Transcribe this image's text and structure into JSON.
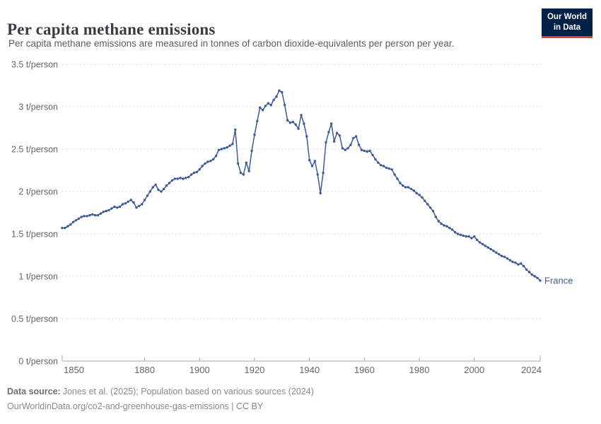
{
  "header": {
    "title": "Per capita methane emissions",
    "subtitle": "Per capita methane emissions are measured in tonnes of carbon dioxide-equivalents per person per year.",
    "logo": {
      "line1": "Our World",
      "line2": "in Data",
      "bg_color": "#002147",
      "accent_color": "#e23d28"
    }
  },
  "chart_data": {
    "type": "line",
    "title": "Per capita methane emissions",
    "unit": "t/person",
    "xlabel": "",
    "ylabel": "",
    "xlim": [
      1850,
      2024
    ],
    "ylim": [
      0,
      3.5
    ],
    "grid": "horizontal-dashed",
    "gridline_color": "#dcdcdc",
    "axis_color": "#a8a8a8",
    "tick_label_color": "#666666",
    "yticks": [
      {
        "v": 0,
        "label": "0 t/person"
      },
      {
        "v": 0.5,
        "label": "0.5 t/person"
      },
      {
        "v": 1,
        "label": "1 t/person"
      },
      {
        "v": 1.5,
        "label": "1.5 t/person"
      },
      {
        "v": 2,
        "label": "2 t/person"
      },
      {
        "v": 2.5,
        "label": "2.5 t/person"
      },
      {
        "v": 3,
        "label": "3 t/person"
      },
      {
        "v": 3.5,
        "label": "3.5 t/person"
      }
    ],
    "xticks": [
      {
        "v": 1850,
        "label": "1850"
      },
      {
        "v": 1880,
        "label": "1880"
      },
      {
        "v": 1900,
        "label": "1900"
      },
      {
        "v": 1920,
        "label": "1920"
      },
      {
        "v": 1940,
        "label": "1940"
      },
      {
        "v": 1960,
        "label": "1960"
      },
      {
        "v": 1980,
        "label": "1980"
      },
      {
        "v": 2000,
        "label": "2000"
      },
      {
        "v": 2024,
        "label": "2024"
      }
    ],
    "x_start": 1850,
    "series": [
      {
        "name": "France",
        "color": "#3d5a96",
        "end_label": "France",
        "values": [
          1.57,
          1.57,
          1.59,
          1.61,
          1.64,
          1.66,
          1.68,
          1.7,
          1.71,
          1.71,
          1.72,
          1.73,
          1.72,
          1.72,
          1.74,
          1.76,
          1.77,
          1.78,
          1.8,
          1.82,
          1.81,
          1.82,
          1.85,
          1.86,
          1.88,
          1.9,
          1.87,
          1.81,
          1.83,
          1.85,
          1.9,
          1.95,
          2.0,
          2.05,
          2.08,
          2.02,
          2.0,
          2.03,
          2.07,
          2.1,
          2.13,
          2.15,
          2.15,
          2.16,
          2.15,
          2.16,
          2.17,
          2.2,
          2.22,
          2.23,
          2.26,
          2.3,
          2.33,
          2.35,
          2.36,
          2.38,
          2.42,
          2.49,
          2.5,
          2.51,
          2.52,
          2.54,
          2.56,
          2.73,
          2.33,
          2.22,
          2.2,
          2.34,
          2.24,
          2.48,
          2.67,
          2.83,
          2.99,
          2.96,
          3.01,
          3.04,
          3.02,
          3.08,
          3.12,
          3.19,
          3.17,
          3.02,
          2.84,
          2.81,
          2.82,
          2.79,
          2.74,
          2.9,
          2.8,
          2.65,
          2.37,
          2.3,
          2.36,
          2.2,
          1.98,
          2.22,
          2.58,
          2.7,
          2.8,
          2.59,
          2.69,
          2.66,
          2.51,
          2.49,
          2.51,
          2.55,
          2.63,
          2.65,
          2.55,
          2.49,
          2.48,
          2.47,
          2.48,
          2.43,
          2.38,
          2.34,
          2.31,
          2.3,
          2.28,
          2.27,
          2.26,
          2.2,
          2.15,
          2.1,
          2.07,
          2.05,
          2.05,
          2.03,
          2.01,
          1.98,
          1.96,
          1.93,
          1.89,
          1.85,
          1.81,
          1.77,
          1.7,
          1.65,
          1.62,
          1.6,
          1.59,
          1.57,
          1.55,
          1.52,
          1.5,
          1.49,
          1.48,
          1.47,
          1.47,
          1.45,
          1.47,
          1.43,
          1.4,
          1.38,
          1.36,
          1.34,
          1.32,
          1.3,
          1.28,
          1.26,
          1.24,
          1.23,
          1.21,
          1.19,
          1.17,
          1.16,
          1.14,
          1.15,
          1.12,
          1.08,
          1.05,
          1.02,
          1.0,
          0.98,
          0.95
        ]
      }
    ]
  },
  "footer": {
    "source_label": "Data source:",
    "source_text": "Jones et al. (2025); Population based on various sources (2024)",
    "note_text": "OurWorldinData.org/co2-and-greenhouse-gas-emissions | CC BY"
  }
}
